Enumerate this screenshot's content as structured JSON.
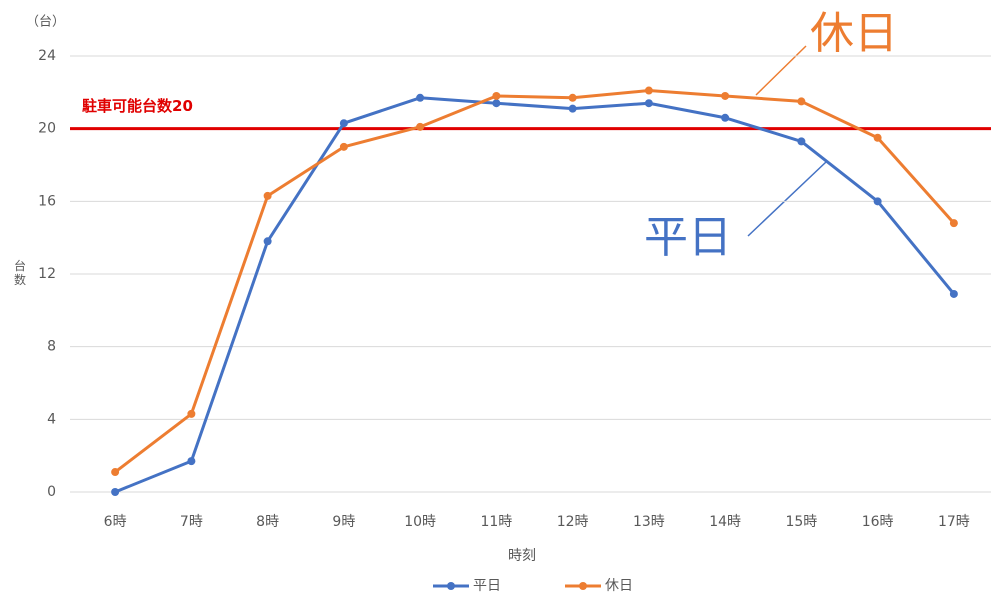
{
  "chart_data": {
    "type": "line",
    "unit_label": "（台）",
    "y_axis_label": "台数",
    "x_axis_label": "時刻",
    "categories": [
      "6時",
      "7時",
      "8時",
      "9時",
      "10時",
      "11時",
      "12時",
      "13時",
      "14時",
      "15時",
      "16時",
      "17時"
    ],
    "series": [
      {
        "name": "平日",
        "color": "#4472c4",
        "values": [
          0,
          1.7,
          13.8,
          20.3,
          21.7,
          21.4,
          21.1,
          21.4,
          20.6,
          19.3,
          16.0,
          10.9
        ]
      },
      {
        "name": "休日",
        "color": "#ed7d31",
        "values": [
          1.1,
          4.3,
          16.3,
          19.0,
          20.1,
          21.8,
          21.7,
          22.1,
          21.8,
          21.5,
          19.5,
          14.8
        ]
      }
    ],
    "ylim": [
      0,
      24
    ],
    "yticks": [
      0,
      4,
      8,
      12,
      16,
      20,
      24
    ],
    "grid": true,
    "reference_line": {
      "label": "駐車可能台数20",
      "value": 20,
      "color": "#e00000"
    },
    "annotations": [
      "休日",
      "平日"
    ],
    "legend": "bottom"
  }
}
